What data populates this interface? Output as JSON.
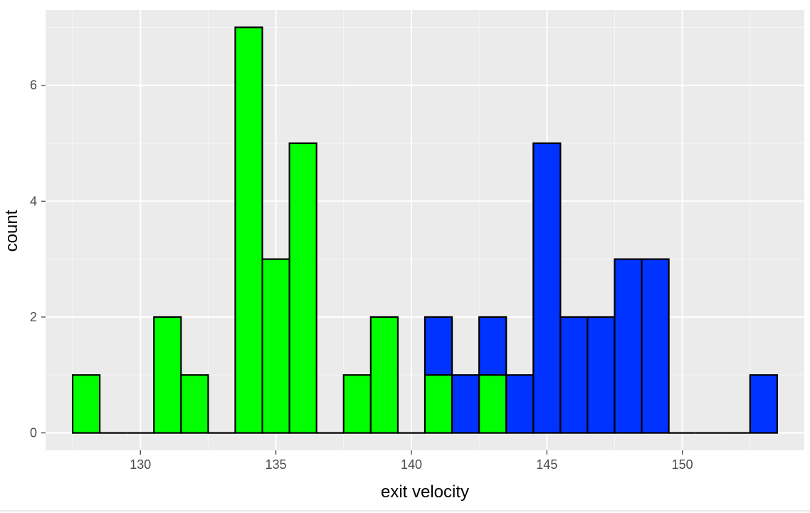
{
  "chart_data": {
    "type": "bar",
    "subtype": "stacked-histogram",
    "title": "",
    "xlabel": "exit velocity",
    "ylabel": "count",
    "xlim": [
      126.5,
      154.5
    ],
    "ylim": [
      -0.3,
      7.3
    ],
    "x_ticks": [
      130,
      135,
      140,
      145,
      150
    ],
    "y_ticks": [
      0,
      2,
      4,
      6
    ],
    "grid": true,
    "legend": "none",
    "bin_width": 1,
    "bin_centers": [
      128,
      129,
      130,
      131,
      132,
      133,
      134,
      135,
      136,
      137,
      138,
      139,
      140,
      141,
      142,
      143,
      144,
      145,
      146,
      147,
      148,
      149,
      150,
      151,
      152,
      153
    ],
    "series": [
      {
        "color": "#00ff00",
        "values": [
          1,
          0,
          0,
          2,
          1,
          0,
          7,
          3,
          5,
          0,
          1,
          2,
          0,
          1,
          0,
          1,
          0,
          0,
          0,
          0,
          0,
          0,
          0,
          0,
          0,
          0
        ]
      },
      {
        "color": "#0033ff",
        "values": [
          0,
          0,
          0,
          0,
          0,
          0,
          0,
          0,
          0,
          0,
          0,
          0,
          0,
          1,
          1,
          1,
          1,
          5,
          2,
          2,
          3,
          3,
          0,
          0,
          0,
          1
        ]
      }
    ]
  }
}
